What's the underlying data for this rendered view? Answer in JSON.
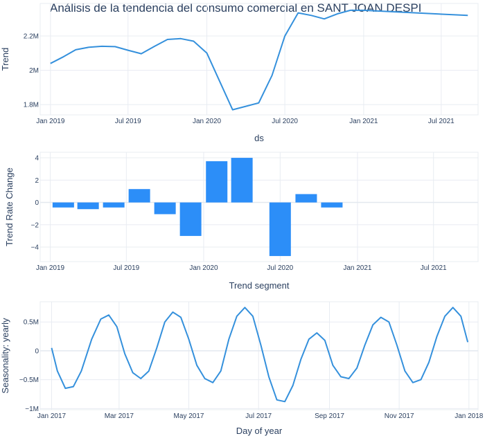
{
  "title": "Análisis de la tendencia del consumo comercial en SANT JOAN DESPI",
  "colors": {
    "trend_line": "#3490dc",
    "bars": "#2c8ef8",
    "seasonality_line": "#3490dc"
  },
  "chart_data": [
    {
      "type": "line",
      "name": "trend",
      "xlabel": "ds",
      "ylabel": "Trend",
      "x": [
        "2019-01-01",
        "2019-02-01",
        "2019-03-01",
        "2019-04-01",
        "2019-05-01",
        "2019-06-01",
        "2019-07-01",
        "2019-08-01",
        "2019-09-01",
        "2019-10-01",
        "2019-11-01",
        "2019-12-01",
        "2020-01-01",
        "2020-02-01",
        "2020-03-01",
        "2020-04-01",
        "2020-05-01",
        "2020-06-01",
        "2020-07-01",
        "2020-08-01",
        "2020-09-01",
        "2020-10-01",
        "2020-11-01",
        "2020-12-01",
        "2021-01-01",
        "2021-09-01"
      ],
      "y": [
        2.04,
        2.08,
        2.12,
        2.135,
        2.14,
        2.138,
        2.117,
        2.097,
        2.14,
        2.18,
        2.185,
        2.17,
        2.1,
        1.93,
        1.77,
        1.79,
        1.81,
        1.97,
        2.2,
        2.335,
        2.32,
        2.3,
        2.33,
        2.35,
        2.35,
        2.32
      ],
      "y_unit": "M",
      "xticks": [
        "Jan 2019",
        "Jul 2019",
        "Jan 2020",
        "Jul 2020",
        "Jan 2021",
        "Jul 2021"
      ],
      "yticks": [
        "1.8M",
        "2M",
        "2.2M"
      ],
      "ylim": [
        1.74,
        2.39
      ],
      "xlim": [
        "2018-12-08",
        "2021-09-25"
      ],
      "grid": true
    },
    {
      "type": "bar",
      "name": "trend_rate_change",
      "xlabel": "Trend segment",
      "ylabel": "Trend Rate Change",
      "x": [
        "2019-02-01",
        "2019-04-01",
        "2019-06-01",
        "2019-08-01",
        "2019-10-01",
        "2019-12-01",
        "2020-02-01",
        "2020-04-01",
        "2020-07-01",
        "2020-09-01",
        "2020-11-01"
      ],
      "values": [
        -0.45,
        -0.6,
        -0.45,
        1.2,
        -1.05,
        -3.0,
        3.7,
        4.0,
        -4.8,
        0.75,
        -0.45
      ],
      "xticks": [
        "Jan 2019",
        "Jul 2019",
        "Jan 2020",
        "Jul 2020",
        "Jan 2021",
        "Jul 2021"
      ],
      "yticks": [
        "−4",
        "−2",
        "0",
        "2",
        "4"
      ],
      "ylim": [
        -5.3,
        4.5
      ],
      "xlim": [
        "2018-12-08",
        "2021-10-15"
      ],
      "grid": true
    },
    {
      "type": "line",
      "name": "seasonality_yearly",
      "xlabel": "Day of year",
      "ylabel": "Seasonality: yearly",
      "x": [
        "2017-01-01",
        "2017-01-06",
        "2017-01-13",
        "2017-01-20",
        "2017-01-27",
        "2017-02-05",
        "2017-02-13",
        "2017-02-20",
        "2017-02-27",
        "2017-03-06",
        "2017-03-13",
        "2017-03-20",
        "2017-03-27",
        "2017-04-03",
        "2017-04-10",
        "2017-04-17",
        "2017-04-24",
        "2017-05-01",
        "2017-05-08",
        "2017-05-15",
        "2017-05-22",
        "2017-05-29",
        "2017-06-05",
        "2017-06-12",
        "2017-06-19",
        "2017-06-26",
        "2017-07-03",
        "2017-07-10",
        "2017-07-17",
        "2017-07-24",
        "2017-07-31",
        "2017-08-07",
        "2017-08-14",
        "2017-08-21",
        "2017-08-28",
        "2017-09-04",
        "2017-09-11",
        "2017-09-18",
        "2017-09-25",
        "2017-10-02",
        "2017-10-09",
        "2017-10-16",
        "2017-10-23",
        "2017-10-30",
        "2017-11-06",
        "2017-11-13",
        "2017-11-20",
        "2017-11-27",
        "2017-12-04",
        "2017-12-11",
        "2017-12-18",
        "2017-12-25",
        "2017-12-31"
      ],
      "y": [
        0.05,
        -0.35,
        -0.65,
        -0.62,
        -0.35,
        0.2,
        0.55,
        0.62,
        0.42,
        -0.05,
        -0.38,
        -0.48,
        -0.35,
        0.05,
        0.5,
        0.67,
        0.58,
        0.2,
        -0.25,
        -0.48,
        -0.55,
        -0.35,
        0.2,
        0.6,
        0.75,
        0.6,
        0.1,
        -0.45,
        -0.85,
        -0.88,
        -0.6,
        -0.15,
        0.2,
        0.31,
        0.18,
        -0.25,
        -0.45,
        -0.48,
        -0.3,
        0.1,
        0.45,
        0.58,
        0.5,
        0.1,
        -0.35,
        -0.55,
        -0.5,
        -0.2,
        0.25,
        0.6,
        0.75,
        0.6,
        0.15
      ],
      "y_unit": "M",
      "xticks": [
        "Jan 2017",
        "Mar 2017",
        "May 2017",
        "Jul 2017",
        "Sep 2017",
        "Nov 2017",
        "Jan 2018"
      ],
      "yticks": [
        "−1M",
        "−0.5M",
        "0",
        "0.5M"
      ],
      "ylim": [
        -1.02,
        0.85
      ],
      "xlim": [
        "2016-12-22",
        "2018-01-09"
      ],
      "grid": true
    }
  ]
}
